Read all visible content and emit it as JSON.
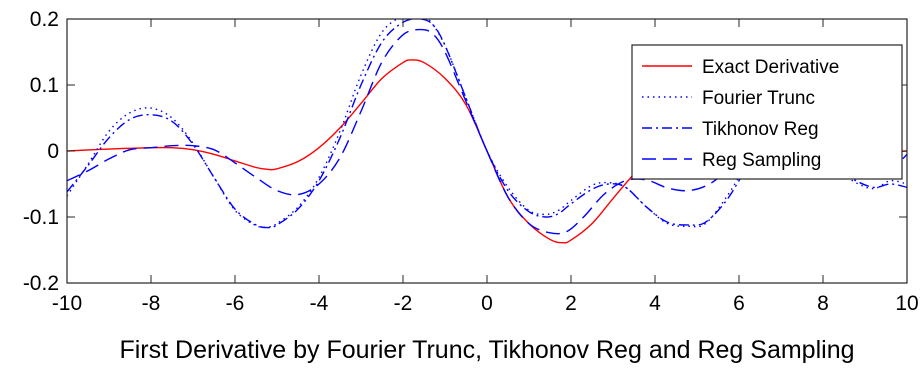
{
  "chart_data": {
    "type": "line",
    "title": "",
    "xlabel": "First Derivative by Fourier Trunc, Tikhonov Reg and Reg Sampling",
    "ylabel": "",
    "xlim": [
      -10,
      10
    ],
    "ylim": [
      -0.2,
      0.2
    ],
    "grid": false,
    "legend_position": "top-right",
    "x_ticks": [
      -10,
      -8,
      -6,
      -4,
      -2,
      0,
      2,
      4,
      6,
      8,
      10
    ],
    "x_tick_labels": [
      "-10",
      "-8",
      "-6",
      "-4",
      "-2",
      "0",
      "2",
      "4",
      "6",
      "8",
      "10"
    ],
    "y_ticks": [
      -0.2,
      -0.1,
      0,
      0.1,
      0.2
    ],
    "y_tick_labels": [
      "-0.2",
      "-0.1",
      "0",
      "0.1",
      "0.2"
    ],
    "series": [
      {
        "name": "Exact Derivative",
        "color": "#ff0000",
        "dash": "solid",
        "x": [
          -10,
          -9,
          -8,
          -7.5,
          -7,
          -6.5,
          -6,
          -5.5,
          -5.2,
          -5,
          -4.5,
          -4,
          -3.5,
          -3,
          -2.5,
          -2,
          -1.8,
          -1.5,
          -1,
          -0.5,
          0,
          0.5,
          1,
          1.5,
          1.8,
          2,
          2.5,
          3,
          3.5,
          4,
          4.5,
          5,
          5.5,
          6,
          6.5,
          7,
          7.5,
          8,
          9,
          10
        ],
        "y": [
          0.0,
          0.003,
          0.005,
          0.005,
          0.002,
          -0.005,
          -0.015,
          -0.025,
          -0.028,
          -0.027,
          -0.016,
          0.005,
          0.035,
          0.072,
          0.11,
          0.134,
          0.138,
          0.134,
          0.11,
          0.07,
          0.0,
          -0.07,
          -0.11,
          -0.134,
          -0.139,
          -0.135,
          -0.11,
          -0.072,
          -0.035,
          -0.005,
          0.016,
          0.027,
          0.025,
          0.015,
          0.005,
          -0.002,
          -0.005,
          -0.005,
          -0.003,
          0.0
        ]
      },
      {
        "name": "Fourier Trunc",
        "color": "#0000ff",
        "dash": "dotted",
        "x": [
          -10,
          -9.5,
          -9,
          -8.5,
          -8,
          -7.5,
          -7,
          -6.5,
          -6,
          -5.5,
          -5.2,
          -5,
          -4.5,
          -4,
          -3.5,
          -3,
          -2.5,
          -2,
          -1.7,
          -1.4,
          -1,
          -0.5,
          0,
          0.5,
          1,
          1.4,
          1.7,
          2,
          2.5,
          2.9,
          3.3,
          3.8,
          4.3,
          4.8,
          5.2,
          5.7,
          6.2,
          6.7,
          7.2,
          7.7,
          8.2,
          8.7,
          9.2,
          9.6,
          10
        ],
        "y": [
          -0.068,
          -0.02,
          0.03,
          0.058,
          0.065,
          0.05,
          0.012,
          -0.04,
          -0.09,
          -0.113,
          -0.115,
          -0.11,
          -0.085,
          -0.04,
          0.03,
          0.115,
          0.18,
          0.205,
          0.208,
          0.2,
          0.16,
          0.08,
          0.0,
          -0.055,
          -0.09,
          -0.096,
          -0.09,
          -0.075,
          -0.052,
          -0.048,
          -0.055,
          -0.085,
          -0.11,
          -0.114,
          -0.11,
          -0.07,
          -0.02,
          0.015,
          0.03,
          0.01,
          -0.02,
          -0.045,
          -0.057,
          -0.045,
          -0.05
        ]
      },
      {
        "name": "Tikhonov Reg",
        "color": "#0000ff",
        "dash": "dashdot",
        "x": [
          -10,
          -9.5,
          -9,
          -8.5,
          -8,
          -7.5,
          -7,
          -6.5,
          -6,
          -5.5,
          -5.2,
          -5,
          -4.5,
          -4,
          -3.5,
          -3,
          -2.5,
          -2,
          -1.6,
          -1.3,
          -1,
          -0.5,
          0,
          0.5,
          1,
          1.4,
          1.7,
          2,
          2.5,
          2.9,
          3.3,
          3.8,
          4.3,
          4.8,
          5.2,
          5.7,
          6.2,
          6.7,
          7.2,
          7.7,
          8.2,
          8.7,
          9.2,
          9.6,
          10
        ],
        "y": [
          -0.062,
          -0.022,
          0.02,
          0.048,
          0.055,
          0.045,
          0.01,
          -0.04,
          -0.088,
          -0.112,
          -0.116,
          -0.112,
          -0.088,
          -0.045,
          0.02,
          0.1,
          0.165,
          0.195,
          0.2,
          0.192,
          0.16,
          0.08,
          0.0,
          -0.06,
          -0.092,
          -0.1,
          -0.095,
          -0.08,
          -0.058,
          -0.05,
          -0.055,
          -0.085,
          -0.108,
          -0.112,
          -0.108,
          -0.075,
          -0.025,
          0.012,
          0.028,
          0.012,
          -0.018,
          -0.042,
          -0.055,
          -0.05,
          -0.055
        ]
      },
      {
        "name": "Reg Sampling",
        "color": "#0000ff",
        "dash": "dashed",
        "x": [
          -10,
          -9.5,
          -9,
          -8.5,
          -8,
          -7.5,
          -7,
          -6.5,
          -6,
          -5.5,
          -5,
          -4.5,
          -4,
          -3.5,
          -3,
          -2.5,
          -2,
          -1.6,
          -1.3,
          -1,
          -0.5,
          0,
          0.5,
          1,
          1.5,
          1.9,
          2.3,
          2.8,
          3.3,
          3.8,
          4.3,
          4.8,
          5.3,
          5.8,
          6.3,
          6.8,
          7.3,
          7.8,
          8.3,
          8.8,
          9.3,
          9.8,
          10
        ],
        "y": [
          -0.045,
          -0.03,
          -0.012,
          0.002,
          0.005,
          0.008,
          0.008,
          0.002,
          -0.018,
          -0.04,
          -0.06,
          -0.066,
          -0.05,
          -0.01,
          0.06,
          0.135,
          0.176,
          0.184,
          0.178,
          0.15,
          0.075,
          0.0,
          -0.07,
          -0.11,
          -0.124,
          -0.122,
          -0.1,
          -0.065,
          -0.045,
          -0.044,
          -0.056,
          -0.06,
          -0.05,
          -0.025,
          0.0,
          0.015,
          0.02,
          0.015,
          0.002,
          -0.01,
          -0.018,
          -0.015,
          -0.005
        ]
      }
    ]
  }
}
